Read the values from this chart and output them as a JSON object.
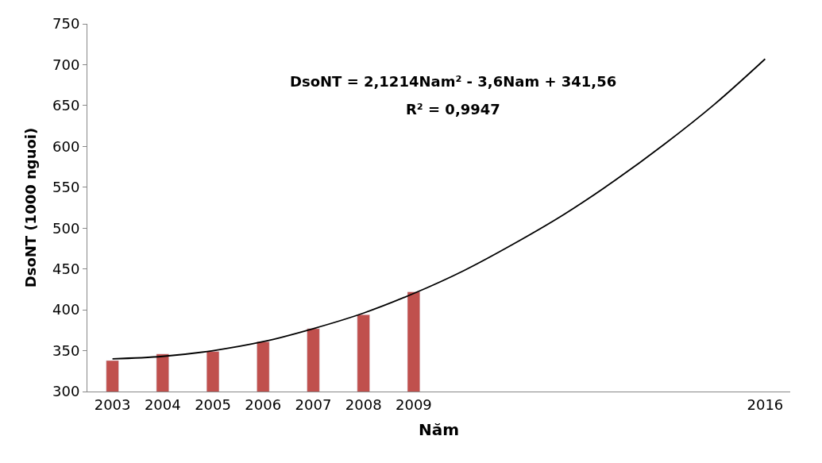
{
  "chart_data": {
    "type": "bar",
    "xlabel": "Năm",
    "ylabel": "DsoNT (1000 nguoi)",
    "categories": [
      "2003",
      "2004",
      "2005",
      "2006",
      "2007",
      "2008",
      "2009",
      null,
      null,
      null,
      null,
      null,
      null,
      "2016"
    ],
    "series": [
      {
        "color": "#c0504d",
        "values": [
          338,
          346,
          349,
          361,
          377,
          394,
          422,
          null,
          null,
          null,
          null,
          null,
          null,
          null
        ]
      },
      {
        "type": "line",
        "color": "#000000",
        "values": [
          340,
          343,
          350,
          361,
          377,
          396,
          420,
          448,
          481,
          517,
          558,
          603,
          652,
          707
        ]
      }
    ],
    "annotations": [
      "DsoNT = 2,1214Nam² - 3,6Nam + 341,56",
      "R² = 0,9947"
    ],
    "ylim": [
      300,
      750
    ],
    "yticks": [
      300,
      350,
      400,
      450,
      500,
      550,
      600,
      650,
      700,
      750
    ],
    "marker": "none",
    "line_style": "solid"
  }
}
